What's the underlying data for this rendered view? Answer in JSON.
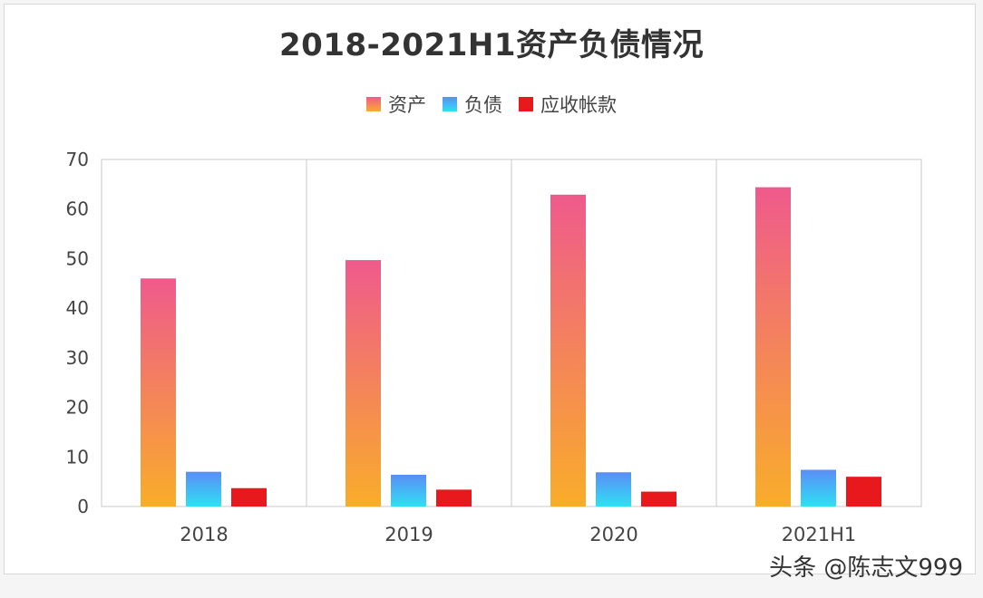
{
  "chart_data": {
    "type": "bar",
    "title": "2018-2021H1资产负债情况",
    "categories": [
      "2018",
      "2019",
      "2020",
      "2021H1"
    ],
    "series": [
      {
        "name": "资产",
        "values": [
          46,
          49.7,
          62.9,
          64.4
        ]
      },
      {
        "name": "负债",
        "values": [
          7,
          6.4,
          6.9,
          7.4
        ]
      },
      {
        "name": "应收帐款",
        "values": [
          3.7,
          3.4,
          3.0,
          6.0
        ]
      }
    ],
    "ylim": [
      0,
      70
    ],
    "yticks": [
      "0",
      "10",
      "20",
      "30",
      "40",
      "50",
      "60",
      "70"
    ],
    "legend_position": "top-center",
    "grid": "vertical category separators"
  },
  "colors": {
    "asset_top": "#ef5a8c",
    "asset_bottom": "#f9ad2a",
    "liability_top": "#5b8df6",
    "liability_bottom": "#2fe0f4",
    "receivable": "#e8191c"
  },
  "watermark": "头条 @陈志文999"
}
